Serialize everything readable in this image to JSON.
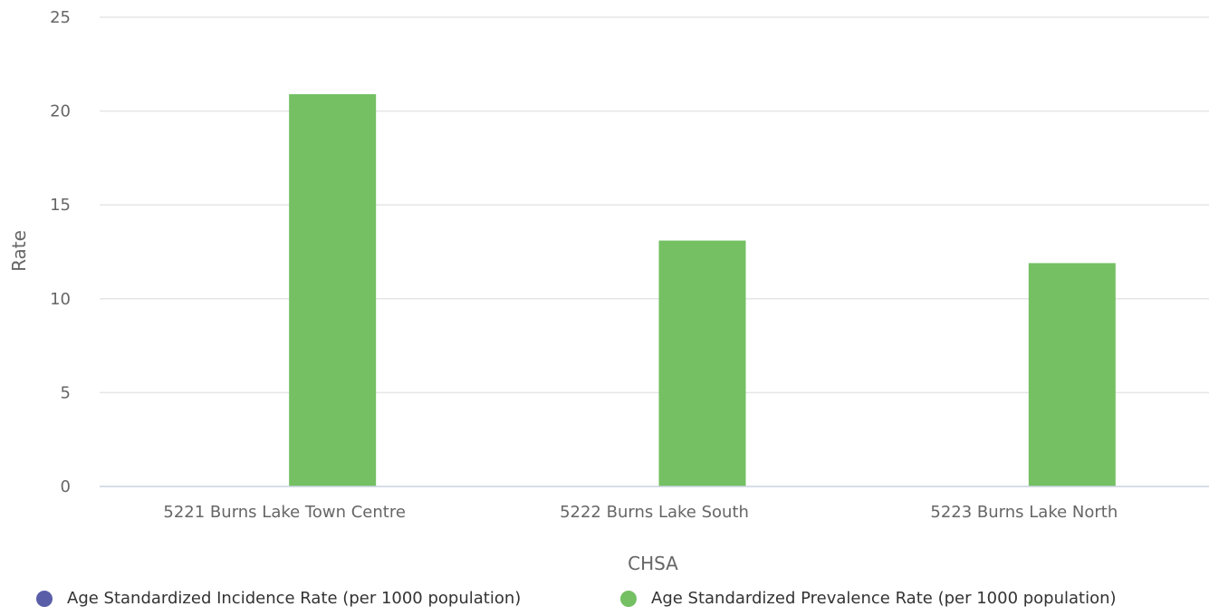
{
  "chart_data": {
    "type": "bar",
    "categories": [
      "5221 Burns Lake Town Centre",
      "5222 Burns Lake South",
      "5223 Burns Lake North"
    ],
    "series": [
      {
        "name": "Age Standardized Incidence Rate (per 1000 population)",
        "color": "#5a5ea8",
        "values": [
          null,
          null,
          null
        ]
      },
      {
        "name": "Age Standardized Prevalence Rate (per 1000 population)",
        "color": "#74c063",
        "values": [
          20.9,
          13.1,
          11.9
        ]
      }
    ],
    "xlabel": "CHSA",
    "ylabel": "Rate",
    "ylim": [
      0,
      25
    ],
    "yticks": [
      "0",
      "5",
      "10",
      "15",
      "20",
      "25"
    ],
    "grid": true,
    "legend_position": "bottom"
  }
}
